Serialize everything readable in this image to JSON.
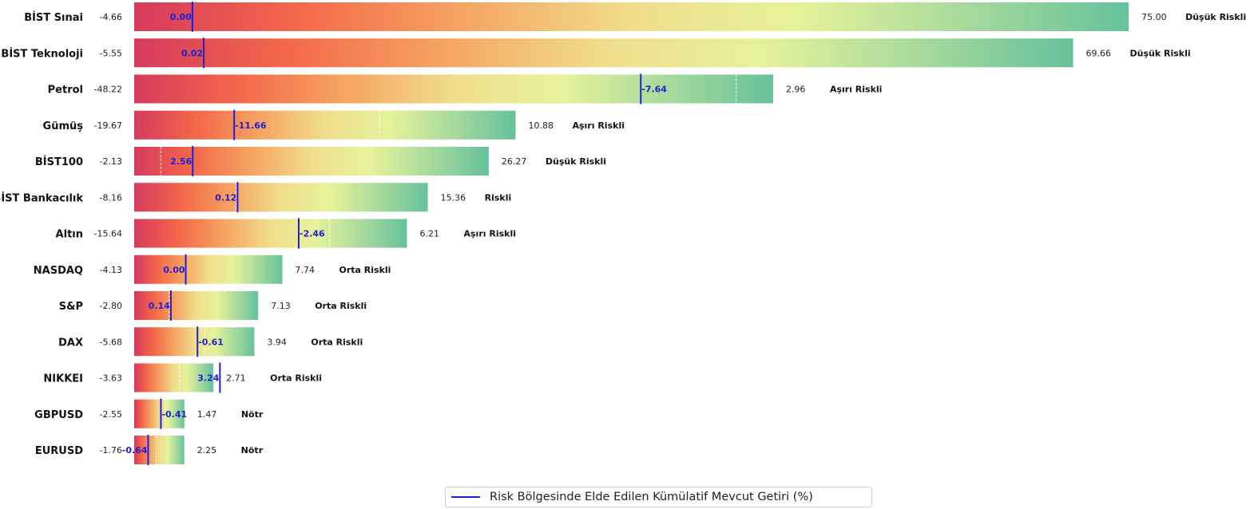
{
  "chart_data": {
    "type": "bar",
    "orientation": "horizontal",
    "colormap": [
      "#d63a5c",
      "#f4694a",
      "#f5a562",
      "#f0dd8c",
      "#e6f29a",
      "#a8da9c",
      "#66c19b"
    ],
    "marker_color": "#1f1fd6",
    "rows": [
      {
        "name": "BİST Sınai",
        "min": -4.66,
        "max": 75.0,
        "current": 0.0,
        "label": "0.00",
        "min_label": "-4.66",
        "max_label": "75.00",
        "risk": "Düşük Riskli"
      },
      {
        "name": "BİST Teknoloji",
        "min": -5.55,
        "max": 69.66,
        "current": 0.02,
        "label": "0.02",
        "min_label": "-5.55",
        "max_label": "69.66",
        "risk": "Düşük Riskli"
      },
      {
        "name": "Petrol",
        "min": -48.22,
        "max": 2.96,
        "current": -7.64,
        "label": "-7.64",
        "min_label": "-48.22",
        "max_label": "2.96",
        "risk": "Aşırı Riskli"
      },
      {
        "name": "Gümüş",
        "min": -19.67,
        "max": 10.88,
        "current": -11.66,
        "label": "-11.66",
        "min_label": "-19.67",
        "max_label": "10.88",
        "risk": "Aşırı Riskli"
      },
      {
        "name": "BİST100",
        "min": -2.13,
        "max": 26.27,
        "current": 2.56,
        "label": "2.56",
        "min_label": "-2.13",
        "max_label": "26.27",
        "risk": "Düşük Riskli"
      },
      {
        "name": "BİST Bankacılık",
        "min": -8.16,
        "max": 15.36,
        "current": 0.12,
        "label": "0.12",
        "min_label": "-8.16",
        "max_label": "15.36",
        "risk": "Riskli"
      },
      {
        "name": "Altın",
        "min": -15.64,
        "max": 6.21,
        "current": -2.46,
        "label": "-2.46",
        "min_label": "-15.64",
        "max_label": "6.21",
        "risk": "Aşırı Riskli"
      },
      {
        "name": "NASDAQ",
        "min": -4.13,
        "max": 7.74,
        "current": 0.0,
        "label": "0.00",
        "min_label": "-4.13",
        "max_label": "7.74",
        "risk": "Orta Riskli"
      },
      {
        "name": "S&P",
        "min": -2.8,
        "max": 7.13,
        "current": 0.14,
        "label": "0.14",
        "min_label": "-2.80",
        "max_label": "7.13",
        "risk": "Orta Riskli"
      },
      {
        "name": "DAX",
        "min": -5.68,
        "max": 3.94,
        "current": -0.61,
        "label": "-0.61",
        "min_label": "-5.68",
        "max_label": "3.94",
        "risk": "Orta Riskli"
      },
      {
        "name": "NIKKEI",
        "min": -3.63,
        "max": 2.71,
        "current": 3.24,
        "label": "3.24",
        "min_label": "-3.63",
        "max_label": "2.71",
        "risk": "Orta Riskli"
      },
      {
        "name": "GBPUSD",
        "min": -2.55,
        "max": 1.47,
        "current": -0.41,
        "label": "-0.41",
        "min_label": "-2.55",
        "max_label": "1.47",
        "risk": "Nötr"
      },
      {
        "name": "EURUSD",
        "min": -1.76,
        "max": 2.25,
        "current": -0.64,
        "label": "-0.64",
        "min_label": "-1.76",
        "max_label": "2.25",
        "risk": "Nötr"
      }
    ],
    "legend": {
      "label": "Risk Bölgesinde Elde Edilen Kümülatif Mevcut Getiri (%)",
      "placement": "bottom-center"
    }
  }
}
